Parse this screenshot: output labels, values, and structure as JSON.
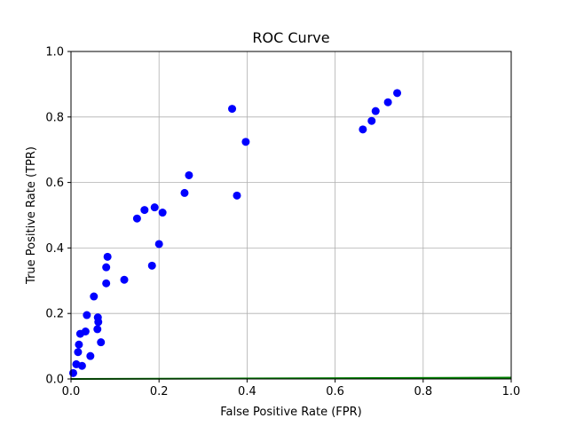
{
  "chart_data": {
    "type": "scatter",
    "title": "ROC Curve",
    "xlabel": "False Positive Rate (FPR)",
    "ylabel": "True Positive Rate (TPR)",
    "xlim": [
      0,
      1
    ],
    "ylim": [
      0,
      1
    ],
    "x_ticks": [
      "0.0",
      "0.2",
      "0.4",
      "0.6",
      "0.8",
      "1.0"
    ],
    "y_ticks": [
      "0.0",
      "0.2",
      "0.4",
      "0.6",
      "0.8",
      "1.0"
    ],
    "grid": true,
    "series": [
      {
        "marker": "circle",
        "color": "#0000ff",
        "points": [
          {
            "x": 0.005,
            "y": 0.018
          },
          {
            "x": 0.012,
            "y": 0.045
          },
          {
            "x": 0.016,
            "y": 0.082
          },
          {
            "x": 0.018,
            "y": 0.105
          },
          {
            "x": 0.021,
            "y": 0.138
          },
          {
            "x": 0.025,
            "y": 0.04
          },
          {
            "x": 0.033,
            "y": 0.145
          },
          {
            "x": 0.036,
            "y": 0.195
          },
          {
            "x": 0.044,
            "y": 0.07
          },
          {
            "x": 0.052,
            "y": 0.252
          },
          {
            "x": 0.06,
            "y": 0.152
          },
          {
            "x": 0.061,
            "y": 0.188
          },
          {
            "x": 0.062,
            "y": 0.174
          },
          {
            "x": 0.068,
            "y": 0.112
          },
          {
            "x": 0.08,
            "y": 0.292
          },
          {
            "x": 0.08,
            "y": 0.341
          },
          {
            "x": 0.083,
            "y": 0.373
          },
          {
            "x": 0.121,
            "y": 0.303
          },
          {
            "x": 0.15,
            "y": 0.49
          },
          {
            "x": 0.167,
            "y": 0.516
          },
          {
            "x": 0.184,
            "y": 0.346
          },
          {
            "x": 0.19,
            "y": 0.524
          },
          {
            "x": 0.2,
            "y": 0.412
          },
          {
            "x": 0.208,
            "y": 0.508
          },
          {
            "x": 0.258,
            "y": 0.568
          },
          {
            "x": 0.268,
            "y": 0.622
          },
          {
            "x": 0.366,
            "y": 0.825
          },
          {
            "x": 0.377,
            "y": 0.56
          },
          {
            "x": 0.397,
            "y": 0.724
          },
          {
            "x": 0.663,
            "y": 0.762
          },
          {
            "x": 0.683,
            "y": 0.788
          },
          {
            "x": 0.692,
            "y": 0.818
          },
          {
            "x": 0.72,
            "y": 0.845
          },
          {
            "x": 0.741,
            "y": 0.873
          }
        ]
      },
      {
        "marker": "line",
        "color": "#008000",
        "points": [
          {
            "x": 0.0,
            "y": 0.0
          },
          {
            "x": 1.0,
            "y": 0.004
          }
        ]
      }
    ]
  }
}
